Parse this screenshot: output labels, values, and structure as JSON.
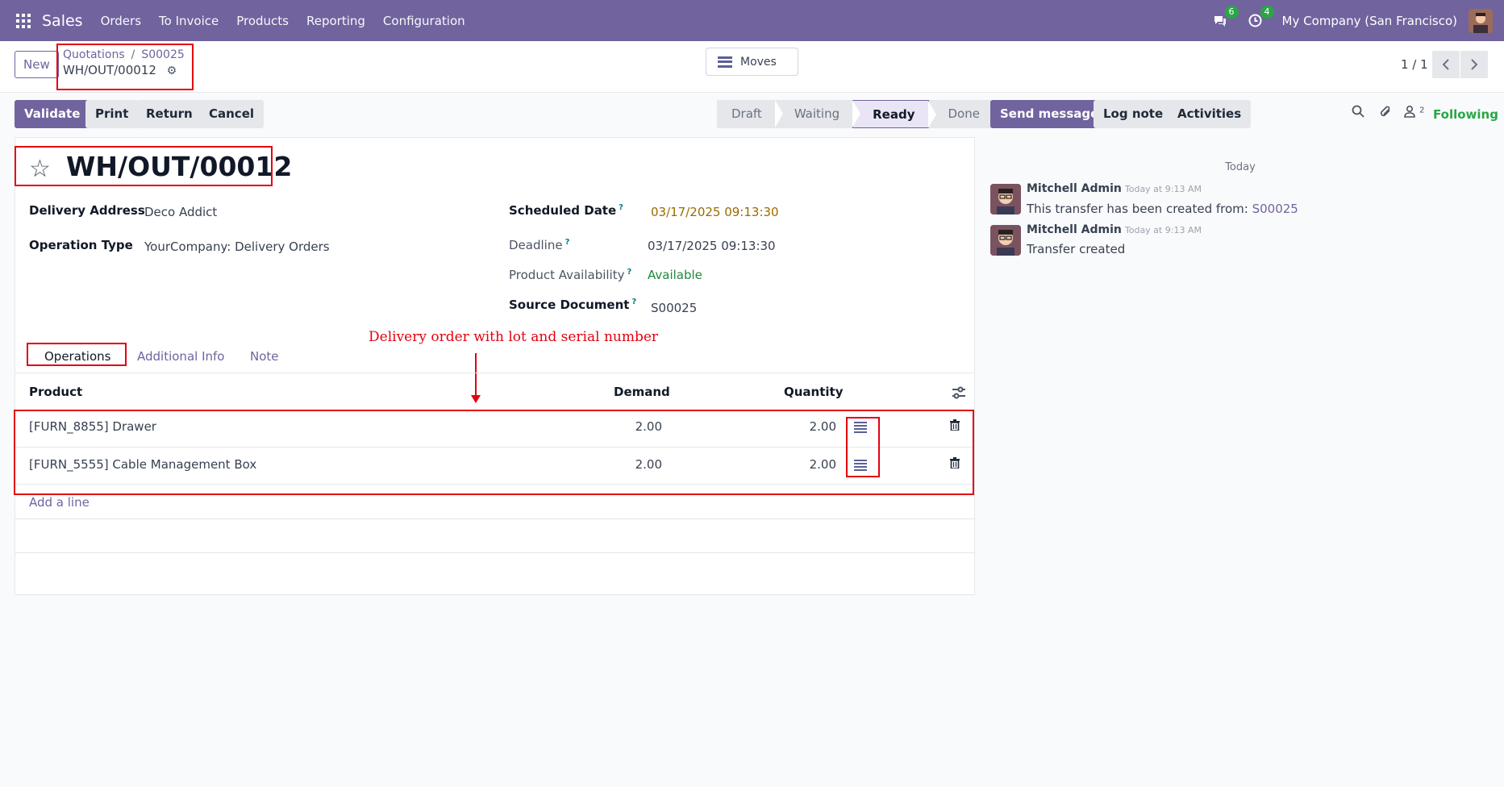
{
  "nav": {
    "app_name": "Sales",
    "menu": [
      "Orders",
      "To Invoice",
      "Products",
      "Reporting",
      "Configuration"
    ],
    "messages_count": "6",
    "activities_count": "4",
    "company": "My Company (San Francisco)"
  },
  "control_panel": {
    "new_label": "New",
    "breadcrumb": [
      "Quotations",
      "S00025"
    ],
    "breadcrumb_sep": "/",
    "record_name": "WH/OUT/00012",
    "moves_label": "Moves",
    "pager": "1 / 1"
  },
  "actions": {
    "validate": "Validate",
    "print": "Print",
    "return": "Return",
    "cancel": "Cancel"
  },
  "status_stages": [
    {
      "label": "Draft",
      "active": false
    },
    {
      "label": "Waiting",
      "active": false
    },
    {
      "label": "Ready",
      "active": true
    },
    {
      "label": "Done",
      "active": false
    }
  ],
  "form": {
    "title": "WH/OUT/00012",
    "delivery_address_label": "Delivery Address",
    "delivery_address": "Deco Addict",
    "operation_type_label": "Operation Type",
    "operation_type": "YourCompany: Delivery Orders",
    "scheduled_date_label": "Scheduled Date",
    "scheduled_date": "03/17/2025 09:13:30",
    "deadline_label": "Deadline",
    "deadline": "03/17/2025 09:13:30",
    "availability_label": "Product Availability",
    "availability": "Available",
    "source_document_label": "Source Document",
    "source_document": "S00025",
    "help_mark": "?"
  },
  "tabs": [
    "Operations",
    "Additional Info",
    "Note"
  ],
  "annotation": "Delivery order with lot and serial number",
  "table": {
    "headers": {
      "product": "Product",
      "demand": "Demand",
      "quantity": "Quantity"
    },
    "rows": [
      {
        "product": "[FURN_8855] Drawer",
        "demand": "2.00",
        "quantity": "2.00"
      },
      {
        "product": "[FURN_5555] Cable Management Box",
        "demand": "2.00",
        "quantity": "2.00"
      }
    ],
    "add_line": "Add a line"
  },
  "chatter": {
    "send_message": "Send message",
    "log_note": "Log note",
    "activities": "Activities",
    "followers_count": "2",
    "following": "Following",
    "today": "Today",
    "messages": [
      {
        "author": "Mitchell Admin",
        "time": "Today at 9:13 AM",
        "body": "This transfer has been created from:",
        "link": "S00025"
      },
      {
        "author": "Mitchell Admin",
        "time": "Today at 9:13 AM",
        "body": "Transfer created",
        "link": ""
      }
    ]
  },
  "colors": {
    "brand": "#71639e",
    "annotation": "#e3000f",
    "success": "#28a745",
    "warning_date": "#9a6a00"
  }
}
